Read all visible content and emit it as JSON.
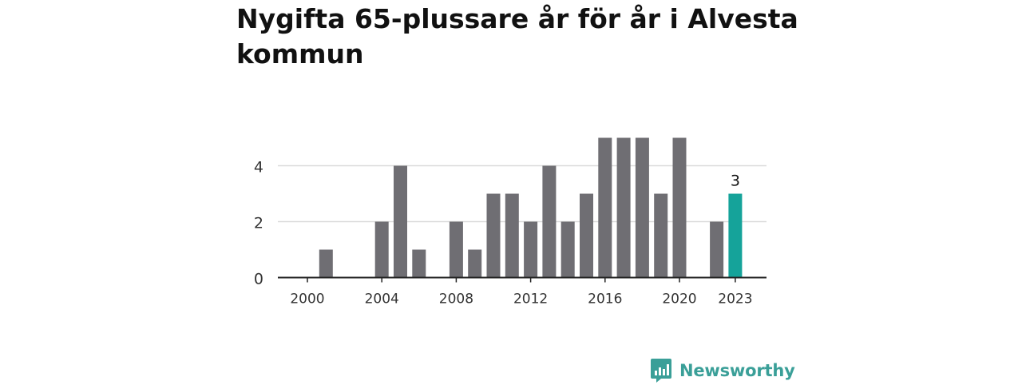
{
  "chart_data": {
    "type": "bar",
    "title": "Nygifta 65-plussare år för år i Alvesta kommun",
    "xlabel": "",
    "ylabel": "",
    "categories": [
      "2000",
      "2001",
      "2002",
      "2003",
      "2004",
      "2005",
      "2006",
      "2007",
      "2008",
      "2009",
      "2010",
      "2011",
      "2012",
      "2013",
      "2014",
      "2015",
      "2016",
      "2017",
      "2018",
      "2019",
      "2020",
      "2021",
      "2022",
      "2023"
    ],
    "values": [
      0,
      1,
      0,
      0,
      2,
      4,
      1,
      0,
      2,
      1,
      3,
      3,
      2,
      4,
      2,
      3,
      5,
      5,
      5,
      3,
      5,
      0,
      2,
      3
    ],
    "ylim": [
      0,
      5
    ],
    "yticks": [
      "0",
      "2",
      "4"
    ],
    "xticks": [
      "2000",
      "2004",
      "2008",
      "2012",
      "2016",
      "2020",
      "2023"
    ],
    "highlight": {
      "category": "2023",
      "label": "3"
    },
    "grid": true,
    "colors": {
      "bar": "#6f6e73",
      "highlight": "#15a39a",
      "grid": "#d9d9d9",
      "axis": "#222222"
    }
  },
  "brand": {
    "name": "Newsworthy",
    "color": "#3a9f98"
  }
}
